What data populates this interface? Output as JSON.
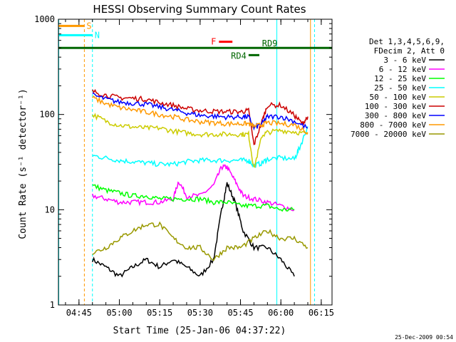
{
  "chart_data": {
    "type": "line",
    "title": "HESSI Observing Summary Count Rates",
    "xlabel": "Start Time (25-Jan-06 04:37:22)",
    "ylabel": "Count Rate (s⁻¹ detector⁻¹)",
    "y_scale": "log",
    "ylim": [
      1,
      1000
    ],
    "xlim": [
      "04:37:22",
      "06:19:00"
    ],
    "x_ticks": [
      "04:45",
      "05:00",
      "05:15",
      "05:30",
      "05:45",
      "06:00",
      "06:15"
    ],
    "y_ticks": [
      "1",
      "10",
      "100",
      "1000"
    ],
    "grid": false,
    "legend_position": "right",
    "legend_header": [
      "Det 1,3,4,5,6,9,",
      "FDecim 2, Att 0"
    ],
    "series": [
      {
        "name": "3 - 6 keV",
        "color": "#000000",
        "x": [
          "04:50",
          "04:55",
          "05:00",
          "05:05",
          "05:10",
          "05:15",
          "05:20",
          "05:25",
          "05:30",
          "05:35",
          "05:38",
          "05:40",
          "05:43",
          "05:46",
          "05:50",
          "05:55",
          "06:00",
          "06:05"
        ],
        "y": [
          3,
          2.5,
          2,
          2.5,
          3,
          2.5,
          3,
          2.5,
          2,
          3,
          10,
          19,
          12,
          6,
          4,
          4,
          3,
          2
        ]
      },
      {
        "name": "6 - 12 keV",
        "color": "#ff00ff",
        "x": [
          "04:50",
          "04:55",
          "05:00",
          "05:05",
          "05:10",
          "05:15",
          "05:20",
          "05:22",
          "05:25",
          "05:30",
          "05:35",
          "05:38",
          "05:40",
          "05:43",
          "05:46",
          "05:50",
          "05:55",
          "06:00",
          "06:05"
        ],
        "y": [
          14,
          13,
          12,
          12,
          12,
          12,
          13,
          20,
          14,
          14,
          18,
          28,
          28,
          20,
          14,
          13,
          12,
          11,
          10
        ]
      },
      {
        "name": "12 - 25 keV",
        "color": "#00ff00",
        "x": [
          "04:50",
          "04:55",
          "05:00",
          "05:05",
          "05:10",
          "05:15",
          "05:20",
          "05:25",
          "05:30",
          "05:35",
          "05:40",
          "05:45",
          "05:50",
          "05:55",
          "06:00",
          "06:05"
        ],
        "y": [
          18,
          16,
          15,
          14,
          14,
          13,
          13,
          13,
          13,
          12,
          12,
          11,
          11,
          11,
          10,
          10
        ]
      },
      {
        "name": "25 - 50 keV",
        "color": "#00ffff",
        "x": [
          "04:50",
          "04:55",
          "05:00",
          "05:05",
          "05:10",
          "05:15",
          "05:20",
          "05:25",
          "05:30",
          "05:35",
          "05:40",
          "05:45",
          "05:48",
          "05:50",
          "05:53",
          "05:55",
          "06:00",
          "06:05",
          "06:07",
          "06:10"
        ],
        "y": [
          37,
          35,
          33,
          32,
          31,
          30,
          30,
          32,
          33,
          33,
          33,
          33,
          33,
          29,
          31,
          34,
          35,
          34,
          45,
          75
        ]
      },
      {
        "name": "50 - 100 keV",
        "color": "#cccc00",
        "x": [
          "04:50",
          "04:55",
          "05:00",
          "05:05",
          "05:10",
          "05:15",
          "05:20",
          "05:25",
          "05:30",
          "05:35",
          "05:40",
          "05:45",
          "05:48",
          "05:50",
          "05:53",
          "05:55",
          "06:00",
          "06:05",
          "06:10"
        ],
        "y": [
          100,
          85,
          77,
          74,
          72,
          72,
          67,
          64,
          62,
          62,
          62,
          62,
          62,
          27,
          60,
          65,
          68,
          66,
          62
        ]
      },
      {
        "name": "100 - 300 keV",
        "color": "#cc0000",
        "x": [
          "04:50",
          "04:55",
          "05:00",
          "05:05",
          "05:10",
          "05:15",
          "05:20",
          "05:25",
          "05:30",
          "05:35",
          "05:40",
          "05:45",
          "05:48",
          "05:50",
          "05:53",
          "05:55",
          "06:00",
          "06:05",
          "06:08",
          "06:10"
        ],
        "y": [
          175,
          160,
          150,
          148,
          145,
          133,
          125,
          115,
          110,
          108,
          107,
          107,
          110,
          48,
          85,
          125,
          125,
          98,
          80,
          95
        ]
      },
      {
        "name": "300 - 800 keV",
        "color": "#0000ff",
        "x": [
          "04:50",
          "04:55",
          "05:00",
          "05:05",
          "05:10",
          "05:15",
          "05:20",
          "05:25",
          "05:30",
          "05:35",
          "05:40",
          "05:45",
          "05:48",
          "05:50",
          "05:53",
          "05:55",
          "06:00",
          "06:05",
          "06:10"
        ],
        "y": [
          160,
          145,
          135,
          132,
          128,
          120,
          112,
          104,
          98,
          96,
          94,
          94,
          95,
          72,
          80,
          95,
          95,
          85,
          72
        ]
      },
      {
        "name": "800 - 7000 keV",
        "color": "#ff9900",
        "x": [
          "04:50",
          "04:55",
          "05:00",
          "05:05",
          "05:10",
          "05:15",
          "05:20",
          "05:25",
          "05:30",
          "05:35",
          "05:40",
          "05:45",
          "05:48",
          "05:50",
          "05:53",
          "05:55",
          "06:00",
          "06:05",
          "06:10"
        ],
        "y": [
          150,
          130,
          118,
          112,
          106,
          100,
          95,
          88,
          84,
          82,
          80,
          80,
          80,
          75,
          78,
          82,
          80,
          78,
          65
        ]
      },
      {
        "name": "7000 - 20000 keV",
        "color": "#999900",
        "x": [
          "04:50",
          "04:55",
          "05:00",
          "05:05",
          "05:10",
          "05:15",
          "05:20",
          "05:25",
          "05:30",
          "05:35",
          "05:40",
          "05:45",
          "05:50",
          "05:55",
          "06:00",
          "06:05",
          "06:10"
        ],
        "y": [
          3.5,
          4,
          5,
          6,
          7,
          7,
          5,
          4,
          4,
          3,
          4,
          4,
          5,
          6,
          5,
          5,
          4
        ]
      }
    ],
    "markers": [
      {
        "label": "S",
        "color": "#ff9900",
        "y": 850,
        "x": [
          "04:37:22",
          "04:47:00"
        ]
      },
      {
        "label": "N",
        "color": "#00ffff",
        "y": 680,
        "x": [
          "04:37:22",
          "04:50:00"
        ]
      },
      {
        "label": "F",
        "color": "#ff0000",
        "y": 580,
        "x": [
          "05:37:00",
          "05:42:00"
        ]
      },
      {
        "label": "RD4",
        "color": "#006600",
        "y": 420,
        "x": [
          "05:48:00",
          "05:52:00"
        ]
      },
      {
        "label": "RD9",
        "color": "#006600",
        "y": 500,
        "x": [
          "04:37:22",
          "06:19:00"
        ]
      }
    ],
    "vertical_lines": [
      {
        "color": "#ff9900",
        "x": "04:47:00",
        "style": "dashed"
      },
      {
        "color": "#00ffff",
        "x": "04:50:00",
        "style": "dashed"
      },
      {
        "color": "#ff9900",
        "x": "06:11:00",
        "style": "solid"
      },
      {
        "color": "#00ffff",
        "x": "06:12:30",
        "style": "dashed"
      },
      {
        "color": "#00ffff",
        "x": "05:58:30",
        "style": "solid"
      },
      {
        "color": "#00ffff",
        "x": "04:37:30",
        "style": "solid"
      }
    ]
  },
  "footer": {
    "date_stamp": "25-Dec-2009 00:54"
  }
}
